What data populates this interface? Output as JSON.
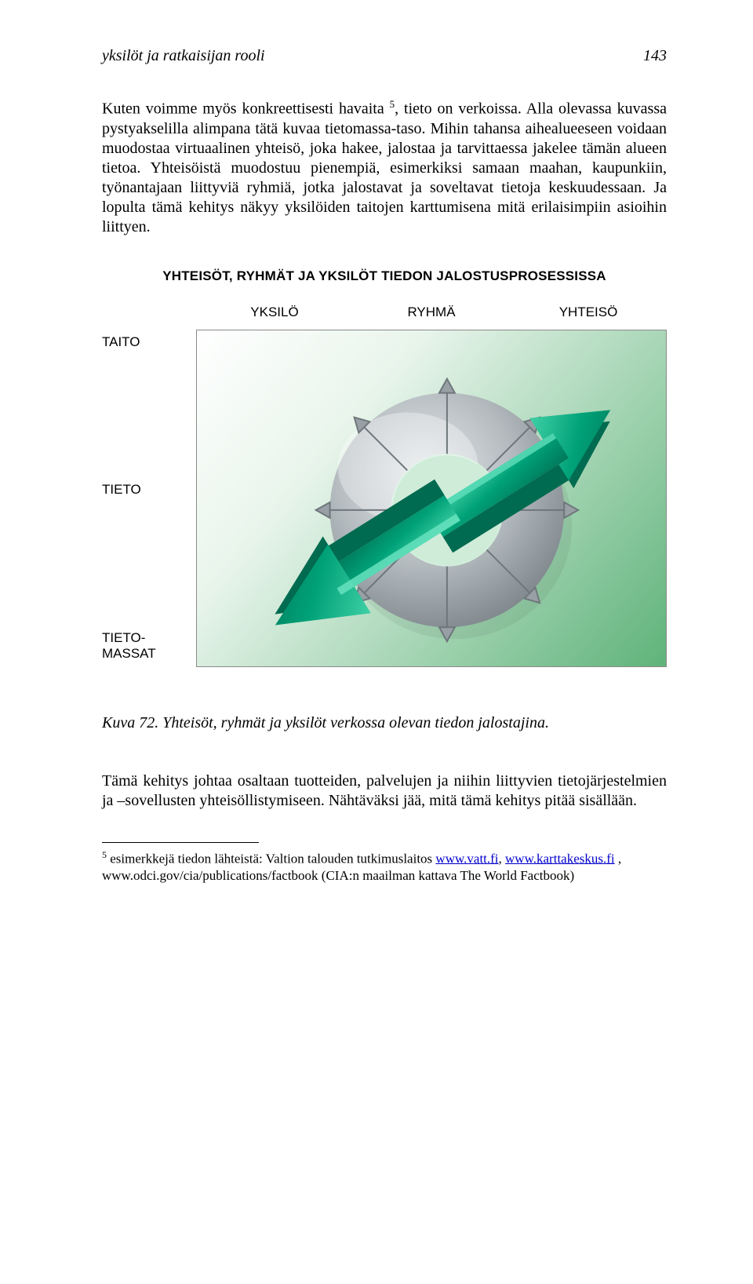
{
  "header": {
    "left": "yksilöt ja ratkaisijan rooli",
    "page": "143"
  },
  "paragraph1": {
    "pre_sup": "Kuten voimme myös konkreettisesti havaita",
    "sup": "5",
    "post_sup": ", tieto on verkoissa. Alla olevassa kuvassa pystyakselilla alimpana tätä kuvaa tietomassa-taso. Mihin tahansa aihealueeseen voidaan muodostaa virtuaalinen yhteisö, joka hakee, jalostaa ja tarvittaessa jakelee tämän alueen tietoa. Yhteisöistä muodostuu pienempiä, esimerkiksi samaan maahan, kaupunkiin, työnantajaan liittyviä ryhmiä, jotka jalostavat ja soveltavat tietoja keskuudessaan. Ja lopulta tämä kehitys näkyy yksilöiden taitojen karttumisena mitä erilaisimpiin asioihin liittyen."
  },
  "diagram": {
    "title": "YHTEISÖT, RYHMÄT JA YKSILÖT  TIEDON JALOSTUSPROSESSISSA",
    "cols": [
      "YKSILÖ",
      "RYHMÄ",
      "YHTEISÖ"
    ],
    "rows": [
      "TAITO",
      "TIETO",
      "TIETO-\nMASSAT"
    ],
    "bg_gradient_start": "#ffffff",
    "bg_gradient_mid": "#e9f5ec",
    "bg_gradient_end": "#5fb37a",
    "ring_light": "#d4d8da",
    "ring_mid": "#aeb4b8",
    "ring_dark": "#848a8e",
    "arrow_main": "#009e76",
    "arrow_edge": "#007a5a",
    "arrow_light": "#34c29a"
  },
  "caption": "Kuva 72. Yhteisöt, ryhmät ja yksilöt verkossa olevan tiedon jalostajina.",
  "paragraph2": "Tämä kehitys johtaa osaltaan tuotteiden, palvelujen ja niihin liittyvien tietojärjestelmien ja –sovellusten yhteisöllistymiseen. Nähtäväksi jää, mitä tämä kehitys pitää sisällään.",
  "footnote": {
    "num": "5",
    "t1": "  esimerkkejä tiedon lähteistä: Valtion talouden tutkimuslaitos ",
    "link1_text": "www.vatt.fi",
    "t2": ", ",
    "link2_text": "www.karttakeskus.fi",
    "t3": " , www.odci.gov/cia/publications/factbook (CIA:n maailman kattava The World Factbook)"
  }
}
